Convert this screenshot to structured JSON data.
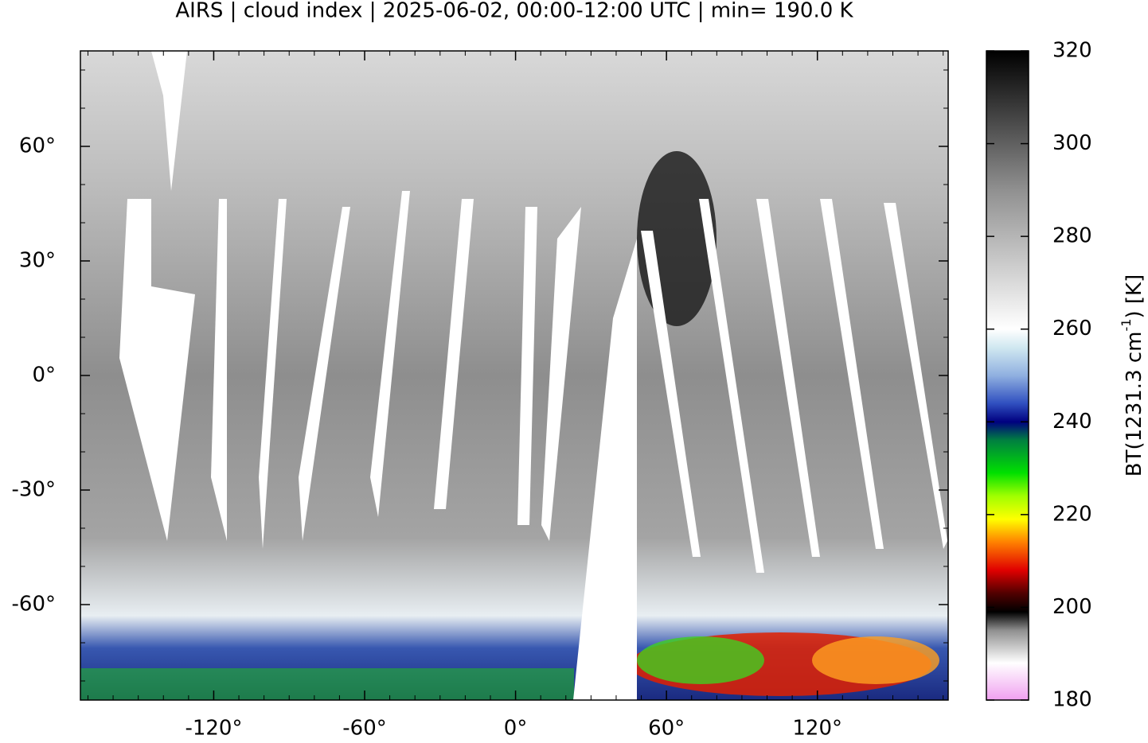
{
  "chart_data": {
    "type": "map",
    "title": "AIRS | cloud index | 2025-06-02, 00:00-12:00 UTC | min= 190.0 K",
    "xlim": [
      -173,
      172
    ],
    "ylim": [
      -85,
      85
    ],
    "xticks": [
      {
        "value": -120,
        "label": "-120°"
      },
      {
        "value": -60,
        "label": "-60°"
      },
      {
        "value": 0,
        "label": "0°"
      },
      {
        "value": 60,
        "label": "60°"
      },
      {
        "value": 120,
        "label": "120°"
      }
    ],
    "yticks": [
      {
        "value": 60,
        "label": "60°"
      },
      {
        "value": 30,
        "label": "30°"
      },
      {
        "value": 0,
        "label": "0°"
      },
      {
        "value": -30,
        "label": "-30°"
      },
      {
        "value": -60,
        "label": "-60°"
      }
    ],
    "colorbar": {
      "label": "BT(1231.3 cm",
      "label_superscript": "-1",
      "label_suffix": ") [K]",
      "clim": [
        180,
        320
      ],
      "ticks": [
        180,
        200,
        220,
        240,
        260,
        280,
        300,
        320
      ],
      "colormap": [
        {
          "value": 180,
          "color": "#f0a0f0"
        },
        {
          "value": 188,
          "color": "#ffffff"
        },
        {
          "value": 195,
          "color": "#909090"
        },
        {
          "value": 199,
          "color": "#000000"
        },
        {
          "value": 203,
          "color": "#500000"
        },
        {
          "value": 208,
          "color": "#e00000"
        },
        {
          "value": 214,
          "color": "#ff8000"
        },
        {
          "value": 219,
          "color": "#ffff00"
        },
        {
          "value": 224,
          "color": "#a0ff00"
        },
        {
          "value": 229,
          "color": "#00e000"
        },
        {
          "value": 236,
          "color": "#008040"
        },
        {
          "value": 240,
          "color": "#000080"
        },
        {
          "value": 244,
          "color": "#3050c0"
        },
        {
          "value": 250,
          "color": "#90b0e0"
        },
        {
          "value": 256,
          "color": "#d0e8f0"
        },
        {
          "value": 260,
          "color": "#ffffff"
        },
        {
          "value": 290,
          "color": "#909090"
        },
        {
          "value": 320,
          "color": "#000000"
        }
      ]
    }
  }
}
